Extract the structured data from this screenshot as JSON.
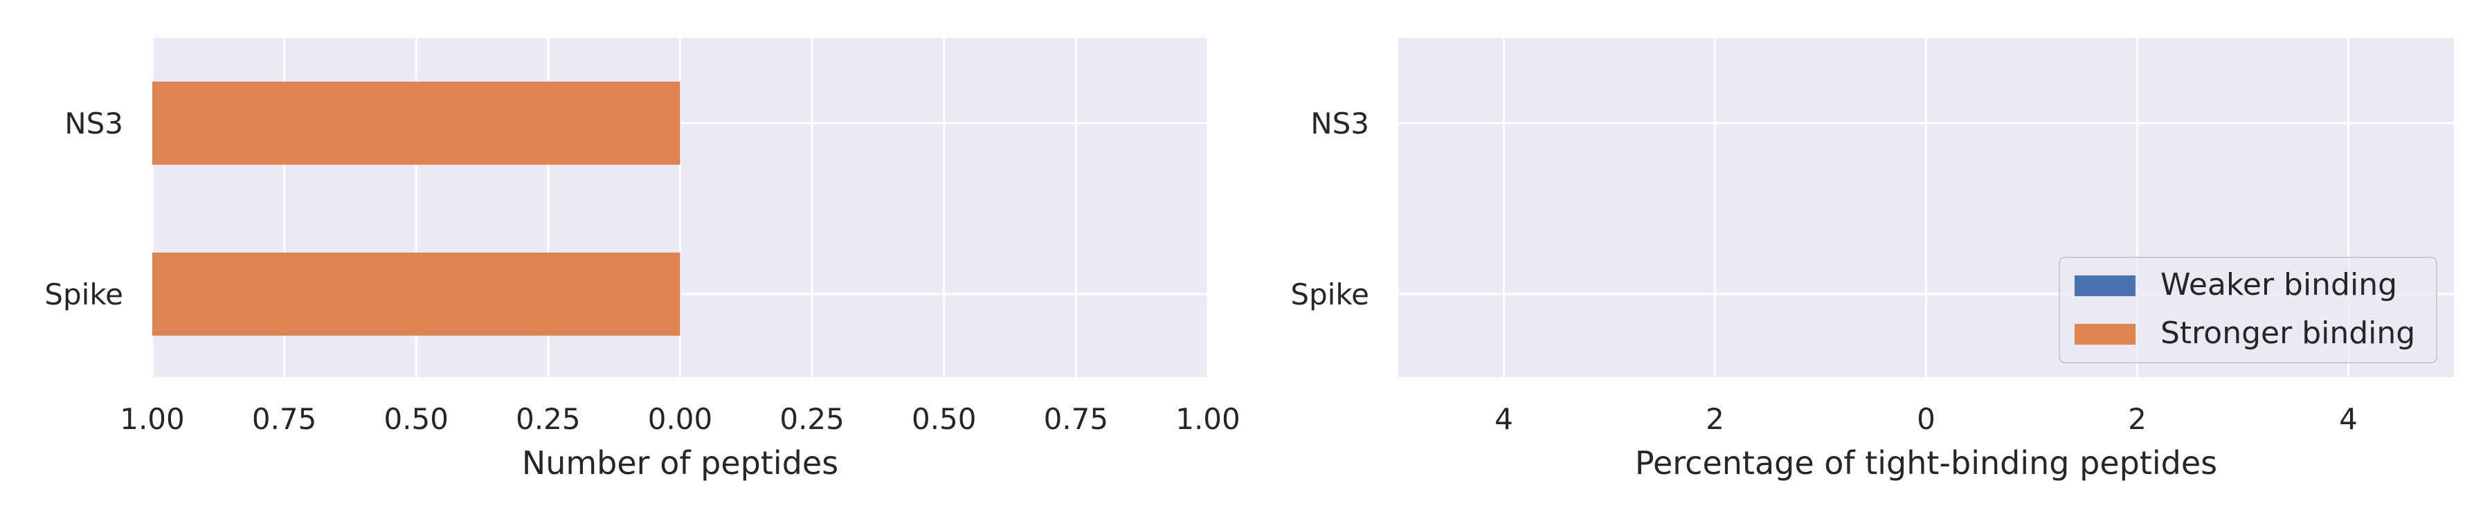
{
  "chart_data": [
    {
      "type": "bar",
      "orientation": "horizontal",
      "categories": [
        "NS3",
        "Spike"
      ],
      "series": [
        {
          "name": "Weaker binding",
          "values": [
            0,
            0
          ],
          "color": "#4c72b0"
        },
        {
          "name": "Stronger binding",
          "values": [
            -1.0,
            -1.0
          ],
          "color": "#dd8452"
        }
      ],
      "xlabel": "Number of peptides",
      "xlim": [
        -1.0,
        1.0
      ],
      "xticks": [
        -1.0,
        -0.75,
        -0.5,
        -0.25,
        0.0,
        0.25,
        0.5,
        0.75,
        1.0
      ],
      "xtick_labels": [
        "1.00",
        "0.75",
        "0.50",
        "0.25",
        "0.00",
        "0.25",
        "0.50",
        "0.75",
        "1.00"
      ],
      "grid": true
    },
    {
      "type": "bar",
      "orientation": "horizontal",
      "categories": [
        "NS3",
        "Spike"
      ],
      "series": [
        {
          "name": "Weaker binding",
          "values": [
            0,
            0
          ],
          "color": "#4c72b0"
        },
        {
          "name": "Stronger binding",
          "values": [
            0,
            0
          ],
          "color": "#dd8452"
        }
      ],
      "xlabel": "Percentage of tight-binding peptides",
      "xlim": [
        -5,
        5
      ],
      "xticks": [
        -4,
        -2,
        0,
        2,
        4
      ],
      "xtick_labels": [
        "4",
        "2",
        "0",
        "2",
        "4"
      ],
      "grid": true,
      "legend": {
        "position": "lower-right",
        "entries": [
          {
            "label": "Weaker binding",
            "color": "#4c72b0"
          },
          {
            "label": "Stronger binding",
            "color": "#dd8452"
          }
        ]
      }
    }
  ],
  "theme": {
    "plot_bg": "#eaeaf2",
    "grid": "#ffffff",
    "text": "#262626"
  }
}
